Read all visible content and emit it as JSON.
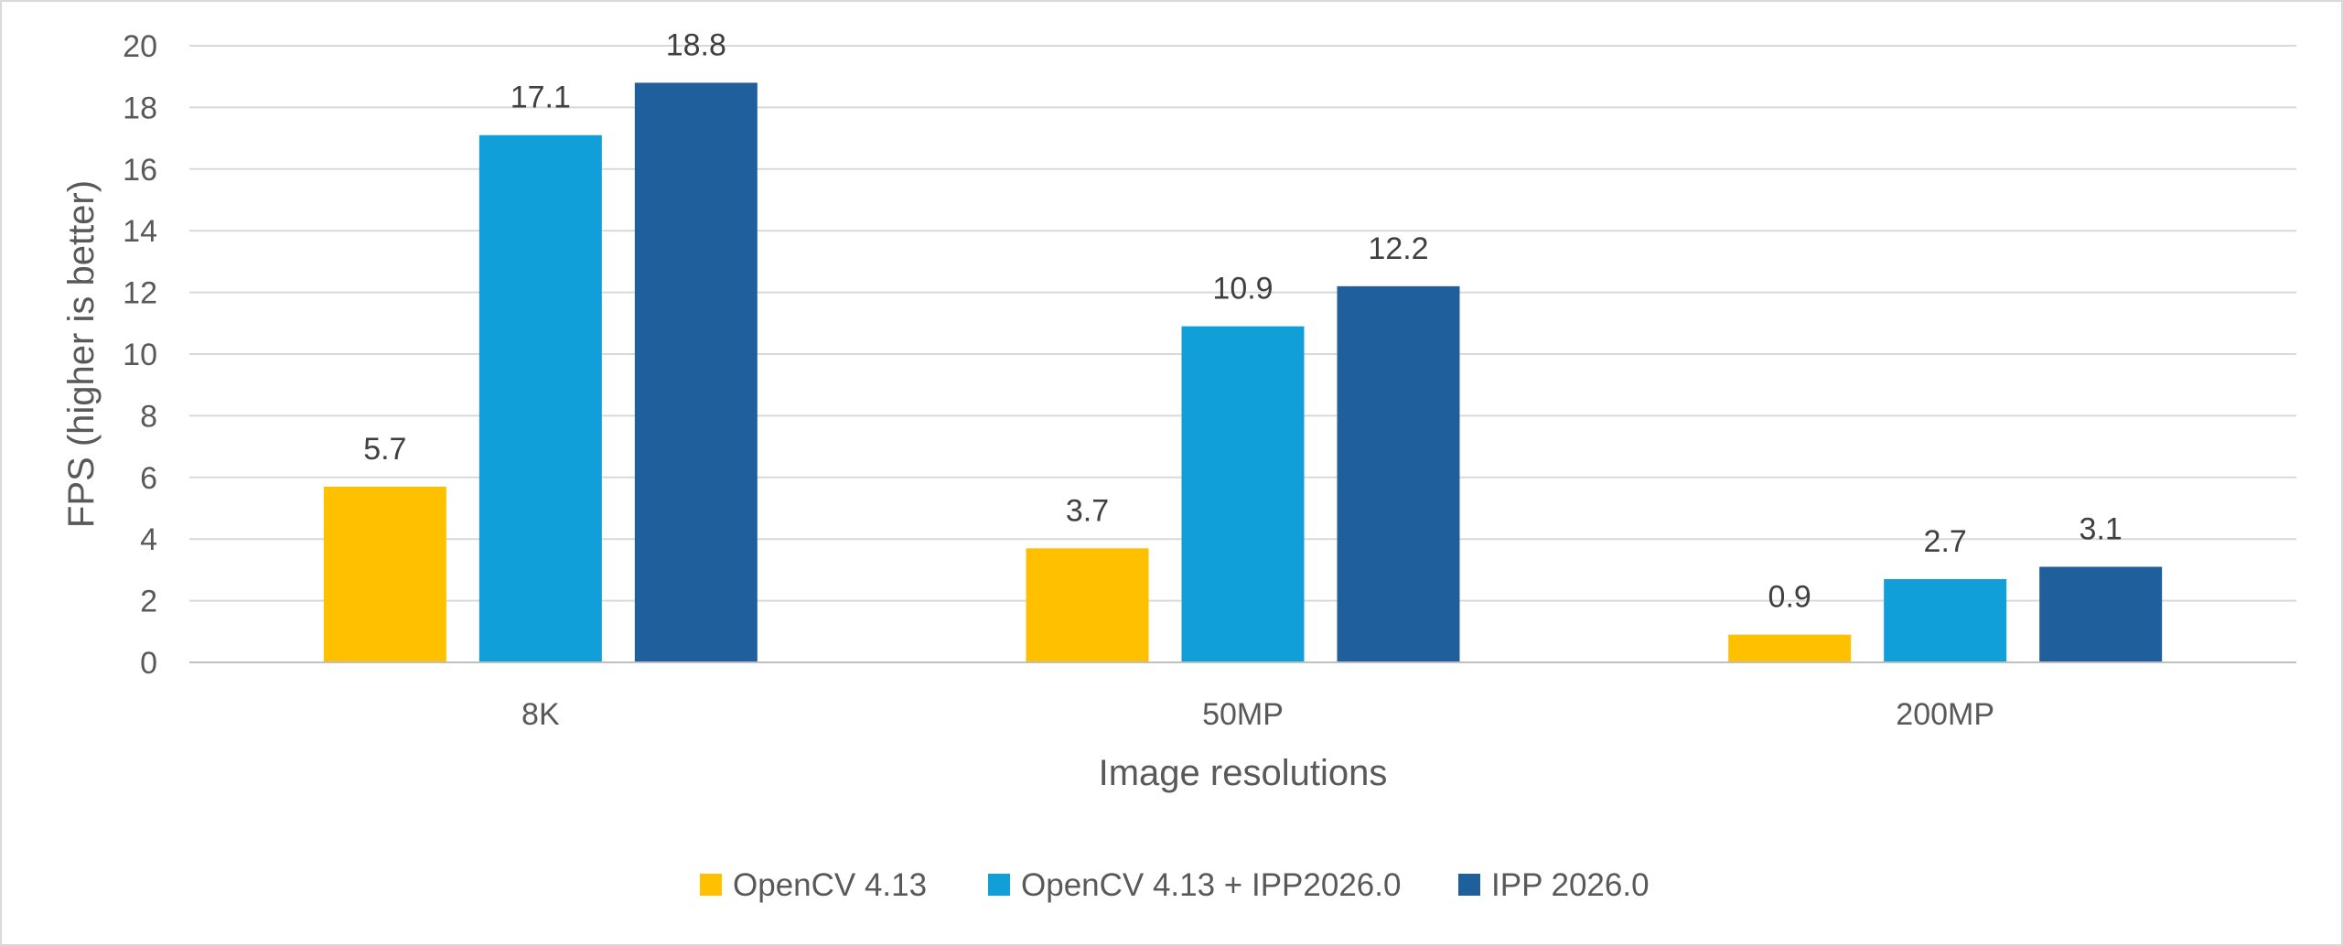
{
  "chart_data": {
    "type": "bar",
    "title": "",
    "xlabel": "Image resolutions",
    "ylabel": "FPS (higher is better)",
    "categories": [
      "8K",
      "50MP",
      "200MP"
    ],
    "series": [
      {
        "name": "OpenCV 4.13",
        "color": "#FFC000",
        "values": [
          5.7,
          3.7,
          0.9
        ]
      },
      {
        "name": "OpenCV 4.13 + IPP2026.0",
        "color": "#109FD8",
        "values": [
          17.1,
          10.9,
          2.7
        ]
      },
      {
        "name": "IPP 2026.0",
        "color": "#1F5F9B",
        "values": [
          18.8,
          12.2,
          3.1
        ]
      }
    ],
    "ylim": [
      0,
      20
    ],
    "yticks": [
      0,
      2,
      4,
      6,
      8,
      10,
      12,
      14,
      16,
      18,
      20
    ],
    "grid": true,
    "legend": "bottom",
    "data_labels": true
  }
}
